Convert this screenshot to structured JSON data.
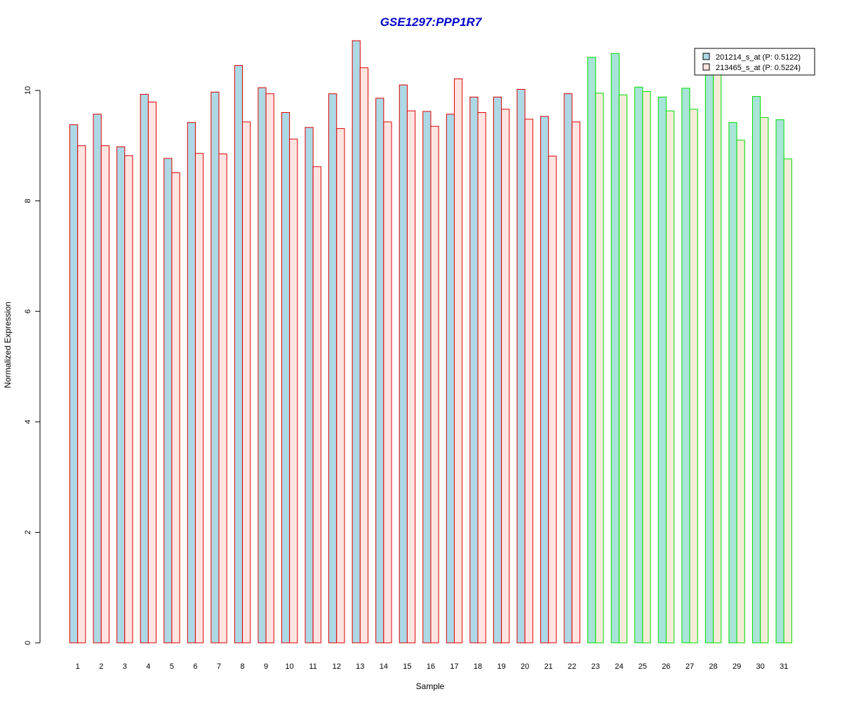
{
  "chart_data": {
    "type": "bar",
    "title": "GSE1297:PPP1R7",
    "xlabel": "Sample",
    "ylabel": "Normalized Expression",
    "ylim": [
      0,
      11
    ],
    "yticks": [
      0,
      2,
      4,
      6,
      8,
      10
    ],
    "categories": [
      "1",
      "2",
      "3",
      "4",
      "5",
      "6",
      "7",
      "8",
      "9",
      "10",
      "11",
      "12",
      "13",
      "14",
      "15",
      "16",
      "17",
      "18",
      "19",
      "20",
      "21",
      "22",
      "23",
      "24",
      "25",
      "26",
      "27",
      "28",
      "29",
      "30",
      "31"
    ],
    "group_border_colors": {
      "samples_1_22": "#dd0000",
      "samples_23_31": "#00dd00"
    },
    "series": [
      {
        "name": "201214_s_at (P: 0.5122)",
        "fill_group1": "#add8e6",
        "fill_group2": "#a8e4d8",
        "values": [
          9.38,
          9.57,
          8.98,
          9.93,
          8.77,
          9.42,
          9.97,
          10.45,
          10.05,
          9.6,
          9.33,
          9.94,
          10.9,
          9.86,
          10.1,
          9.62,
          9.57,
          9.88,
          9.88,
          10.02,
          9.53,
          9.94,
          10.6,
          10.67,
          10.06,
          9.88,
          10.04,
          10.3,
          9.42,
          9.89,
          9.47
        ]
      },
      {
        "name": "213465_s_at (P: 0.5224)",
        "fill_group1": "#ffe4e1",
        "fill_group2": "#f5ecd8",
        "values": [
          9.0,
          9.0,
          8.82,
          9.79,
          8.51,
          8.86,
          8.85,
          9.43,
          9.94,
          9.12,
          8.62,
          9.31,
          10.41,
          9.43,
          9.63,
          9.35,
          10.21,
          9.6,
          9.66,
          9.48,
          8.81,
          9.43,
          9.95,
          9.92,
          9.98,
          9.63,
          9.66,
          10.3,
          9.1,
          9.51,
          8.76
        ]
      }
    ],
    "legend_position": "top-right",
    "grid": false
  }
}
